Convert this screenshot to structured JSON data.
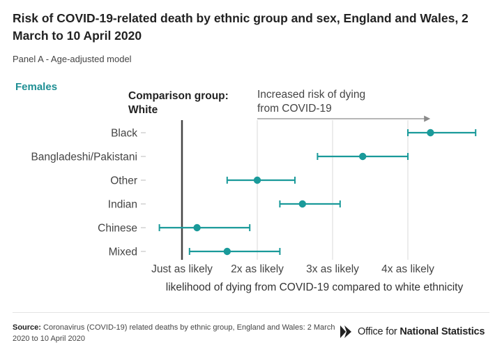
{
  "header": {
    "title": "Risk of COVID-19-related death by ethnic group and sex, England and Wales, 2 March to 10 April 2020",
    "subtitle": "Panel A - Age-adjusted model"
  },
  "panel": {
    "sex_label": "Females",
    "comparison_line1": "Comparison group:",
    "comparison_line2": "White",
    "risk_line1": "Increased risk of dying",
    "risk_line2": "from COVID-19"
  },
  "footer": {
    "source_label": "Source:",
    "source_text": "Coronavirus (COVID-19) related deaths by ethnic group, England and Wales: 2 March 2020 to 10 April 2020",
    "org_prefix": "Office for ",
    "org_bold": "National Statistics"
  },
  "colors": {
    "series": "#1a9a9a",
    "reference_line": "#444444",
    "grid": "#d9d9d9",
    "arrow": "#8a8a8a"
  },
  "chart_data": {
    "type": "scatter",
    "subtype": "forest-plot",
    "title": "Risk of COVID-19-related death by ethnic group and sex, England and Wales, 2 March to 10 April 2020",
    "subtitle": "Panel A - Age-adjusted model",
    "panel": "Females",
    "xlabel": "likelihood of dying from COVID-19 compared to white ethnicity",
    "xlim": [
      0.55,
      4.4
    ],
    "reference_value": 1,
    "x_ticks": [
      {
        "value": 1,
        "label": "Just as likely"
      },
      {
        "value": 2,
        "label": "2x as likely"
      },
      {
        "value": 3,
        "label": "3x as likely"
      },
      {
        "value": 4,
        "label": "4x as likely"
      }
    ],
    "grid": true,
    "categories": [
      "Black",
      "Bangladeshi/Pakistani",
      "Other",
      "Indian",
      "Chinese",
      "Mixed"
    ],
    "series": [
      {
        "values": [
          4.3,
          3.4,
          2.0,
          2.6,
          1.2,
          1.6
        ],
        "lower": [
          4.0,
          2.8,
          1.6,
          2.3,
          0.7,
          1.1
        ],
        "upper": [
          4.9,
          4.0,
          2.5,
          3.1,
          1.9,
          2.3
        ]
      }
    ]
  }
}
